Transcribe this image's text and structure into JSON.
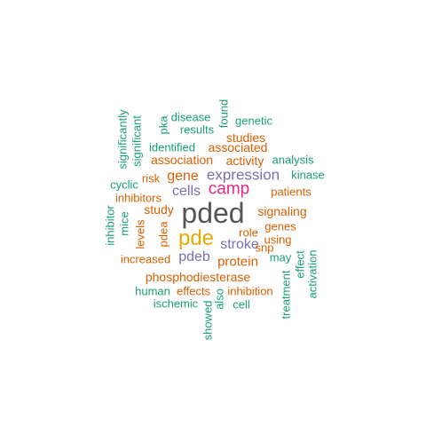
{
  "colors": {
    "teal": "#1b9e77",
    "orange": "#d95f02",
    "purple": "#7570b3",
    "magenta": "#e7298a",
    "gold": "#e6ab02",
    "gray": "#555555"
  },
  "words": [
    {
      "text": "pded",
      "color": "gray"
    },
    {
      "text": "pde",
      "color": "gold"
    },
    {
      "text": "camp",
      "color": "magenta"
    },
    {
      "text": "expression",
      "color": "purple"
    },
    {
      "text": "cells",
      "color": "purple"
    },
    {
      "text": "stroke",
      "color": "purple"
    },
    {
      "text": "pdeb",
      "color": "purple"
    },
    {
      "text": "gene",
      "color": "orange"
    },
    {
      "text": "protein",
      "color": "orange"
    },
    {
      "text": "phosphodiesterase",
      "color": "orange"
    },
    {
      "text": "association",
      "color": "orange"
    },
    {
      "text": "activity",
      "color": "orange"
    },
    {
      "text": "associated",
      "color": "orange"
    },
    {
      "text": "studies",
      "color": "orange"
    },
    {
      "text": "study",
      "color": "orange"
    },
    {
      "text": "signaling",
      "color": "orange"
    },
    {
      "text": "patients",
      "color": "orange"
    },
    {
      "text": "genes",
      "color": "orange"
    },
    {
      "text": "role",
      "color": "orange"
    },
    {
      "text": "increased",
      "color": "orange"
    },
    {
      "text": "inhibitors",
      "color": "orange"
    },
    {
      "text": "risk",
      "color": "orange"
    },
    {
      "text": "effects",
      "color": "orange"
    },
    {
      "text": "snp",
      "color": "orange"
    },
    {
      "text": "using",
      "color": "orange"
    },
    {
      "text": "levels",
      "color": "orange"
    },
    {
      "text": "pdea",
      "color": "orange"
    },
    {
      "text": "inhibition",
      "color": "orange"
    },
    {
      "text": "analysis",
      "color": "teal"
    },
    {
      "text": "identified",
      "color": "teal"
    },
    {
      "text": "genetic",
      "color": "teal"
    },
    {
      "text": "disease",
      "color": "teal"
    },
    {
      "text": "results",
      "color": "teal"
    },
    {
      "text": "kinase",
      "color": "teal"
    },
    {
      "text": "cyclic",
      "color": "teal"
    },
    {
      "text": "human",
      "color": "teal"
    },
    {
      "text": "ischemic",
      "color": "teal"
    },
    {
      "text": "cell",
      "color": "teal"
    },
    {
      "text": "may",
      "color": "teal"
    },
    {
      "text": "pka",
      "color": "teal"
    },
    {
      "text": "found",
      "color": "teal"
    },
    {
      "text": "significantly",
      "color": "teal"
    },
    {
      "text": "significant",
      "color": "teal"
    },
    {
      "text": "inhibitor",
      "color": "teal"
    },
    {
      "text": "mice",
      "color": "teal"
    },
    {
      "text": "also",
      "color": "teal"
    },
    {
      "text": "showed",
      "color": "teal"
    },
    {
      "text": "treatment",
      "color": "teal"
    },
    {
      "text": "effect",
      "color": "teal"
    },
    {
      "text": "activation",
      "color": "teal"
    }
  ]
}
